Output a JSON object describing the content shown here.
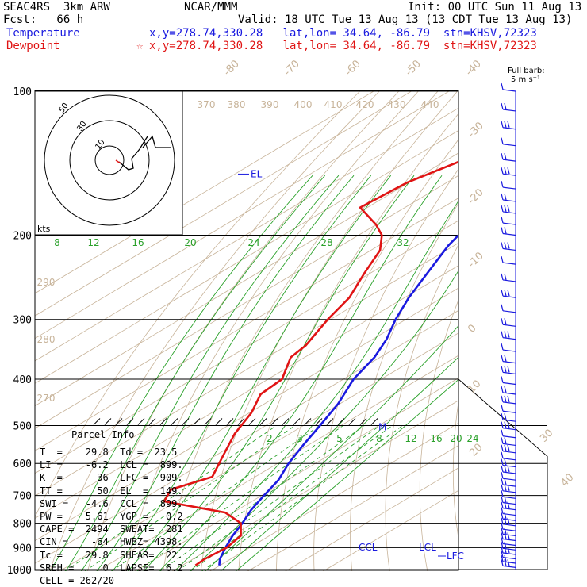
{
  "header": {
    "line1_left": "SEAC4RS  3km ARW",
    "line1_center": "NCAR/MMM",
    "line1_right": "Init: 00 UTC Sun 11 Aug 13",
    "line2_left": "Fcst:   66 h",
    "line2_right": "Valid: 18 UTC Tue 13 Aug 13 (13 CDT Tue 13 Aug 13)",
    "line3_left": "Temperature",
    "line3_right": "x,y=278.74,330.28   lat,lon= 34.64, -86.79  stn=KHSV,72323",
    "line4_left": "Dewpoint",
    "line4_marker": "☆",
    "line4_right": "x,y=278.74,330.28   lat,lon= 34.64, -86.79  stn=KHSV,72323"
  },
  "barb_legend": {
    "line1": "Full barb:",
    "line2": "5 m s⁻¹"
  },
  "colors": {
    "temperature": "#1a1adf",
    "dewpoint": "#e01414",
    "theta": "#c8b49a",
    "mixing_ratio": "#2aa12a",
    "isobar": "#000000"
  },
  "parcel_info": {
    "title": "Parcel Info",
    "rows": [
      "T  =    29.8  Td =  23.5",
      "LI =    -6.2  LCL =  899.",
      "K  =      36  LFC =  909.",
      "TT =      50  EL  =  149.",
      "SWI =   -4.6  CCL =  899.",
      "PW =    5.61  YGP =   0.2",
      "CAPE =  2494  SWEAT=  281",
      "CIN =    -64  HWBZ= 4398.",
      "Tc =    29.8  SHEAR=  22.",
      "SREH =     0  LAPSE=  6.2",
      "CELL = 262/20"
    ]
  },
  "chart_data": {
    "type": "line",
    "subtype": "skew-T log-p sounding",
    "y_axis": "pressure (hPa), log scale",
    "pressure_labels": [
      "100",
      "200",
      "300",
      "400",
      "500",
      "600",
      "700",
      "800",
      "900",
      "1000"
    ],
    "pressure_values": [
      100,
      200,
      300,
      400,
      500,
      600,
      700,
      800,
      900,
      1000
    ],
    "temperature_labels": [
      "-80",
      "-70",
      "-60",
      "-50",
      "-40",
      "-30",
      "-20",
      "-10",
      "0",
      "10",
      "20",
      "30",
      "40"
    ],
    "theta_labels": [
      "370",
      "380",
      "390",
      "400",
      "410",
      "420",
      "430",
      "440",
      "290",
      "280",
      "270"
    ],
    "mixing_ratio_labels_upper": [
      "8",
      "12",
      "16",
      "20",
      "24",
      "28",
      "32"
    ],
    "mixing_ratio_labels_lower": [
      "2",
      "3",
      "5",
      "8",
      "12",
      "16",
      "20",
      "24"
    ],
    "series": [
      {
        "name": "Temperature",
        "color": "#1a1adf",
        "points": [
          {
            "p": 100,
            "t": -74.4
          },
          {
            "p": 105,
            "t": -73.3
          },
          {
            "p": 115,
            "t": -70.7
          },
          {
            "p": 130,
            "t": -66.7
          },
          {
            "p": 150,
            "t": -62.3
          },
          {
            "p": 175,
            "t": -57.5
          },
          {
            "p": 195,
            "t": -54.4
          },
          {
            "p": 210,
            "t": -51.6
          },
          {
            "p": 240,
            "t": -44.9
          },
          {
            "p": 270,
            "t": -38.9
          },
          {
            "p": 300,
            "t": -32.7
          },
          {
            "p": 330,
            "t": -26.3
          },
          {
            "p": 360,
            "t": -21.5
          },
          {
            "p": 400,
            "t": -17.3
          },
          {
            "p": 450,
            "t": -10.5
          },
          {
            "p": 500,
            "t": -5.6
          },
          {
            "p": 550,
            "t": -1.3
          },
          {
            "p": 600,
            "t": 2.9
          },
          {
            "p": 650,
            "t": 7.6
          },
          {
            "p": 700,
            "t": 10.6
          },
          {
            "p": 750,
            "t": 13.6
          },
          {
            "p": 800,
            "t": 17.2
          },
          {
            "p": 850,
            "t": 20.2
          },
          {
            "p": 900,
            "t": 23.6
          },
          {
            "p": 950,
            "t": 27.1
          },
          {
            "p": 980,
            "t": 29.8
          }
        ]
      },
      {
        "name": "Dewpoint",
        "color": "#e01414",
        "points": [
          {
            "p": 100,
            "t": -77.0
          },
          {
            "p": 120,
            "t": -81.2
          },
          {
            "p": 140,
            "t": -85.9
          },
          {
            "p": 155,
            "t": -90.5
          },
          {
            "p": 175,
            "t": -91.9
          },
          {
            "p": 190,
            "t": -80.1
          },
          {
            "p": 200,
            "t": -73.8
          },
          {
            "p": 215,
            "t": -67.6
          },
          {
            "p": 240,
            "t": -61.6
          },
          {
            "p": 270,
            "t": -54.7
          },
          {
            "p": 300,
            "t": -50.7
          },
          {
            "p": 340,
            "t": -45.0
          },
          {
            "p": 360,
            "t": -43.7
          },
          {
            "p": 400,
            "t": -36.3
          },
          {
            "p": 430,
            "t": -35.3
          },
          {
            "p": 470,
            "t": -29.5
          },
          {
            "p": 520,
            "t": -24.6
          },
          {
            "p": 580,
            "t": -17.7
          },
          {
            "p": 640,
            "t": -11.4
          },
          {
            "p": 680,
            "t": -16.7
          },
          {
            "p": 720,
            "t": -13.3
          },
          {
            "p": 760,
            "t": 7.9
          },
          {
            "p": 800,
            "t": 16.8
          },
          {
            "p": 850,
            "t": 22.4
          },
          {
            "p": 900,
            "t": 23.9
          },
          {
            "p": 950,
            "t": 23.1
          },
          {
            "p": 980,
            "t": 23.5
          }
        ]
      }
    ],
    "annotations": [
      {
        "text": "EL",
        "p": 149,
        "color": "#1a1adf"
      },
      {
        "text": "CCL",
        "p": 899,
        "color": "#1a1adf"
      },
      {
        "text": "LCL",
        "p": 899,
        "color": "#1a1adf"
      },
      {
        "text": "LFC",
        "p": 909,
        "color": "#1a1adf"
      },
      {
        "text": "M",
        "p": 500,
        "color": "#1a1adf"
      }
    ],
    "hodograph": {
      "unit_label": "kts",
      "ring_labels": [
        "50",
        "30",
        "10"
      ]
    },
    "wind_barbs_pressures": [
      100,
      110,
      120,
      130,
      140,
      150,
      160,
      170,
      180,
      190,
      200,
      215,
      230,
      250,
      270,
      290,
      310,
      330,
      350,
      370,
      390,
      410,
      430,
      450,
      470,
      490,
      510,
      530,
      550,
      570,
      590,
      610,
      630,
      650,
      670,
      690,
      710,
      730,
      750,
      770,
      790,
      810,
      830,
      850,
      870,
      890,
      910,
      930,
      950,
      970,
      990
    ]
  }
}
